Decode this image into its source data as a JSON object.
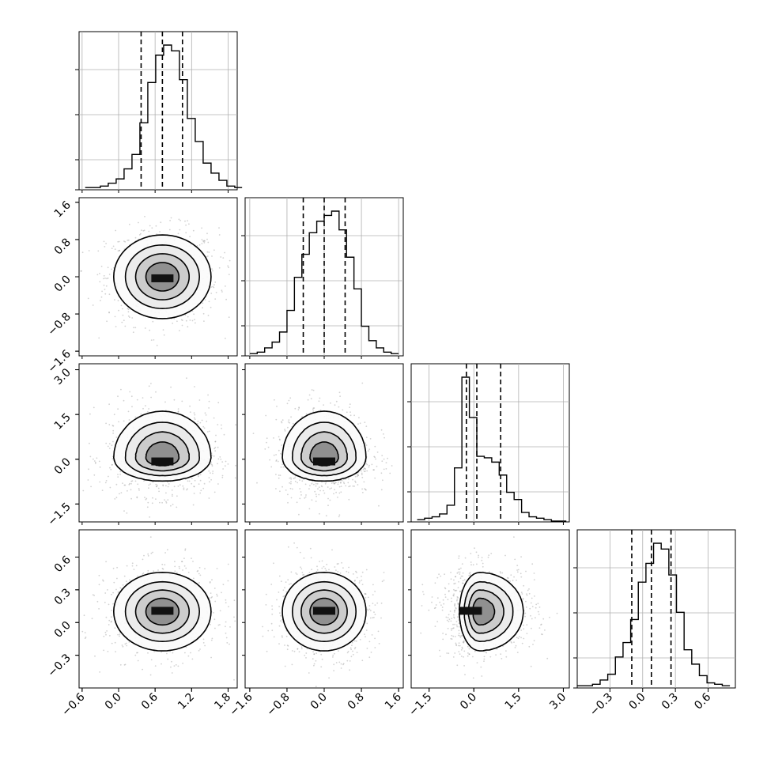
{
  "chart_data": {
    "type": "corner",
    "n_params": 4,
    "params": [
      {
        "ticks": [
          -0.6,
          0.0,
          0.6,
          1.2,
          1.8
        ],
        "tick_labels": [
          "−0.6",
          "0.0",
          "0.6",
          "1.2",
          "1.8"
        ],
        "range": [
          -0.65,
          1.95
        ],
        "quantiles": [
          0.37,
          0.72,
          1.05
        ],
        "hist_bins": [
          -0.55,
          -0.43,
          -0.3,
          -0.17,
          -0.04,
          0.09,
          0.22,
          0.35,
          0.48,
          0.61,
          0.74,
          0.87,
          1.0,
          1.13,
          1.26,
          1.39,
          1.52,
          1.65,
          1.78,
          1.91
        ],
        "hist_values": [
          0.01,
          0.01,
          0.02,
          0.04,
          0.07,
          0.14,
          0.24,
          0.46,
          0.74,
          0.93,
          1.0,
          0.96,
          0.76,
          0.49,
          0.33,
          0.18,
          0.11,
          0.06,
          0.02,
          0.01
        ]
      },
      {
        "ticks": [
          -1.6,
          -0.8,
          0.0,
          0.8,
          1.6
        ],
        "tick_labels": [
          "−1.6",
          "−0.8",
          "0.0",
          "0.8",
          "1.6"
        ],
        "range": [
          -1.7,
          1.7
        ],
        "quantiles": [
          -0.45,
          0.0,
          0.45
        ],
        "hist_bins": [
          -1.6,
          -1.44,
          -1.28,
          -1.12,
          -0.96,
          -0.8,
          -0.64,
          -0.48,
          -0.32,
          -0.16,
          0.0,
          0.16,
          0.32,
          0.48,
          0.64,
          0.8,
          0.96,
          1.12,
          1.28,
          1.44,
          1.6
        ],
        "hist_values": [
          0.01,
          0.02,
          0.05,
          0.09,
          0.16,
          0.31,
          0.54,
          0.7,
          0.85,
          0.93,
          0.97,
          1.0,
          0.87,
          0.68,
          0.46,
          0.2,
          0.1,
          0.05,
          0.02,
          0.01
        ]
      },
      {
        "ticks": [
          -1.5,
          0.0,
          1.5,
          3.0
        ],
        "tick_labels": [
          "−1.5",
          "0.0",
          "1.5",
          "3.0"
        ],
        "range": [
          -2.1,
          3.2
        ],
        "quantiles": [
          -0.25,
          0.1,
          0.9
        ],
        "hist_bins": [
          -1.9,
          -1.65,
          -1.4,
          -1.15,
          -0.9,
          -0.65,
          -0.4,
          -0.15,
          0.1,
          0.35,
          0.6,
          0.85,
          1.1,
          1.35,
          1.6,
          1.85,
          2.1,
          2.35,
          2.6,
          2.85
        ],
        "hist_values": [
          0.01,
          0.02,
          0.03,
          0.05,
          0.11,
          0.37,
          1.0,
          0.72,
          0.45,
          0.44,
          0.41,
          0.32,
          0.2,
          0.15,
          0.06,
          0.03,
          0.02,
          0.01,
          0.0,
          0.0
        ]
      },
      {
        "ticks": [
          -0.3,
          0.0,
          0.3,
          0.6
        ],
        "tick_labels": [
          "−0.3",
          "0.0",
          "0.3",
          "0.6"
        ],
        "range": [
          -0.6,
          0.85
        ],
        "quantiles": [
          -0.1,
          0.08,
          0.26
        ],
        "hist_bins": [
          -0.6,
          -0.53,
          -0.46,
          -0.39,
          -0.32,
          -0.25,
          -0.18,
          -0.11,
          -0.04,
          0.03,
          0.1,
          0.17,
          0.24,
          0.31,
          0.38,
          0.45,
          0.52,
          0.59,
          0.66,
          0.73,
          0.8
        ],
        "hist_values": [
          0.01,
          0.01,
          0.02,
          0.05,
          0.09,
          0.21,
          0.31,
          0.47,
          0.73,
          0.86,
          1.0,
          0.96,
          0.78,
          0.52,
          0.26,
          0.16,
          0.08,
          0.03,
          0.02,
          0.01
        ]
      }
    ],
    "pairs": [
      {
        "x": 0,
        "y": 1,
        "center": [
          0.72,
          0.0
        ],
        "spread": [
          0.4,
          0.45
        ],
        "skew": 0,
        "peak": [
          0.72,
          -0.05
        ]
      },
      {
        "x": 0,
        "y": 2,
        "center": [
          0.72,
          0.05
        ],
        "spread": [
          0.4,
          0.55
        ],
        "skew": 1,
        "peak": [
          0.72,
          -0.1
        ]
      },
      {
        "x": 1,
        "y": 2,
        "center": [
          0.0,
          0.05
        ],
        "spread": [
          0.45,
          0.55
        ],
        "skew": 1,
        "peak": [
          0.0,
          -0.1
        ]
      },
      {
        "x": 0,
        "y": 3,
        "center": [
          0.72,
          0.1
        ],
        "spread": [
          0.4,
          0.18
        ],
        "skew": 0,
        "peak": [
          0.72,
          0.1
        ]
      },
      {
        "x": 1,
        "y": 3,
        "center": [
          0.0,
          0.1
        ],
        "spread": [
          0.45,
          0.18
        ],
        "skew": 0,
        "peak": [
          0.0,
          0.1
        ]
      },
      {
        "x": 2,
        "y": 3,
        "center": [
          0.2,
          0.1
        ],
        "spread": [
          0.55,
          0.18
        ],
        "skew": 2,
        "peak": [
          -0.1,
          0.1
        ]
      }
    ],
    "grid": true,
    "quantile_style": "dashed",
    "colors": {
      "line": "#000000",
      "grid": "#b0b0b0",
      "scatter": "#7f7f7f"
    }
  }
}
